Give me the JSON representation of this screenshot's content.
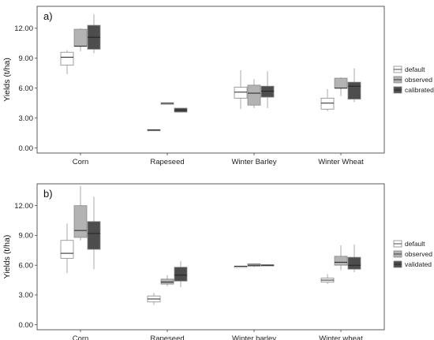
{
  "chart_data": [
    {
      "type": "boxplot",
      "panel_label": "a)",
      "ylabel": "Yields (t/ha)",
      "ylim": [
        -0.5,
        14.2
      ],
      "yticks": [
        "0.00",
        "3.00",
        "6.00",
        "9.00",
        "12.00"
      ],
      "grid": false,
      "legend_position": "right",
      "categories": [
        "Corn",
        "Rapeseed",
        "Winter Barley",
        "Winter Wheat"
      ],
      "series": [
        {
          "name": "default",
          "color": "#ffffff",
          "boxes": [
            {
              "min": 7.4,
              "q1": 8.3,
              "median": 9.1,
              "q3": 9.6,
              "max": 9.8
            },
            {
              "min": 1.7,
              "q1": 1.75,
              "median": 1.8,
              "q3": 1.85,
              "max": 1.9
            },
            {
              "min": 3.9,
              "q1": 5.0,
              "median": 5.6,
              "q3": 6.1,
              "max": 7.8
            },
            {
              "min": 3.7,
              "q1": 3.9,
              "median": 4.5,
              "q3": 5.0,
              "max": 5.9
            }
          ]
        },
        {
          "name": "observed",
          "color": "#b3b3b3",
          "boxes": [
            {
              "min": 9.7,
              "q1": 10.2,
              "median": 10.2,
              "q3": 11.9,
              "max": 12.0
            },
            {
              "min": 4.5,
              "q1": 4.5,
              "median": 4.5,
              "q3": 4.5,
              "max": 4.5
            },
            {
              "min": 4.0,
              "q1": 4.3,
              "median": 5.5,
              "q3": 6.3,
              "max": 6.9
            },
            {
              "min": 5.2,
              "q1": 6.0,
              "median": 6.0,
              "q3": 7.0,
              "max": 7.1
            }
          ]
        },
        {
          "name": "calibrated",
          "color": "#4d4d4d",
          "boxes": [
            {
              "min": 9.5,
              "q1": 9.9,
              "median": 11.1,
              "q3": 12.3,
              "max": 13.4
            },
            {
              "min": 3.6,
              "q1": 3.6,
              "median": 3.8,
              "q3": 4.0,
              "max": 4.0
            },
            {
              "min": 4.0,
              "q1": 5.1,
              "median": 5.7,
              "q3": 6.2,
              "max": 7.7
            },
            {
              "min": 4.6,
              "q1": 4.9,
              "median": 6.2,
              "q3": 6.6,
              "max": 8.0
            }
          ]
        }
      ]
    },
    {
      "type": "boxplot",
      "panel_label": "b)",
      "ylabel": "Yields (t/ha)",
      "ylim": [
        -0.5,
        14.2
      ],
      "yticks": [
        "0.00",
        "3.00",
        "6.00",
        "9.00",
        "12.00"
      ],
      "grid": false,
      "legend_position": "right",
      "categories": [
        "Corn",
        "Rapeseed",
        "Winter barley",
        "Winter wheat"
      ],
      "series": [
        {
          "name": "default",
          "color": "#ffffff",
          "boxes": [
            {
              "min": 5.2,
              "q1": 6.7,
              "median": 7.2,
              "q3": 8.5,
              "max": 10.2
            },
            {
              "min": 2.0,
              "q1": 2.3,
              "median": 2.6,
              "q3": 2.9,
              "max": 3.2
            },
            {
              "min": 5.9,
              "q1": 5.9,
              "median": 5.9,
              "q3": 5.9,
              "max": 5.9
            },
            {
              "min": 4.1,
              "q1": 4.3,
              "median": 4.5,
              "q3": 4.7,
              "max": 5.1
            }
          ]
        },
        {
          "name": "observed",
          "color": "#b3b3b3",
          "boxes": [
            {
              "min": 8.5,
              "q1": 8.8,
              "median": 9.5,
              "q3": 12.0,
              "max": 14.0
            },
            {
              "min": 3.9,
              "q1": 4.1,
              "median": 4.3,
              "q3": 4.6,
              "max": 5.0
            },
            {
              "min": 5.8,
              "q1": 5.9,
              "median": 6.0,
              "q3": 6.15,
              "max": 6.2
            },
            {
              "min": 5.5,
              "q1": 6.0,
              "median": 6.3,
              "q3": 6.9,
              "max": 8.0
            }
          ]
        },
        {
          "name": "validated",
          "color": "#4d4d4d",
          "boxes": [
            {
              "min": 5.6,
              "q1": 7.6,
              "median": 9.2,
              "q3": 10.4,
              "max": 12.9
            },
            {
              "min": 3.8,
              "q1": 4.4,
              "median": 5.0,
              "q3": 5.8,
              "max": 6.4
            },
            {
              "min": 5.9,
              "q1": 5.95,
              "median": 6.0,
              "q3": 6.05,
              "max": 6.1
            },
            {
              "min": 5.3,
              "q1": 5.6,
              "median": 6.0,
              "q3": 6.8,
              "max": 8.1
            }
          ]
        }
      ]
    }
  ]
}
